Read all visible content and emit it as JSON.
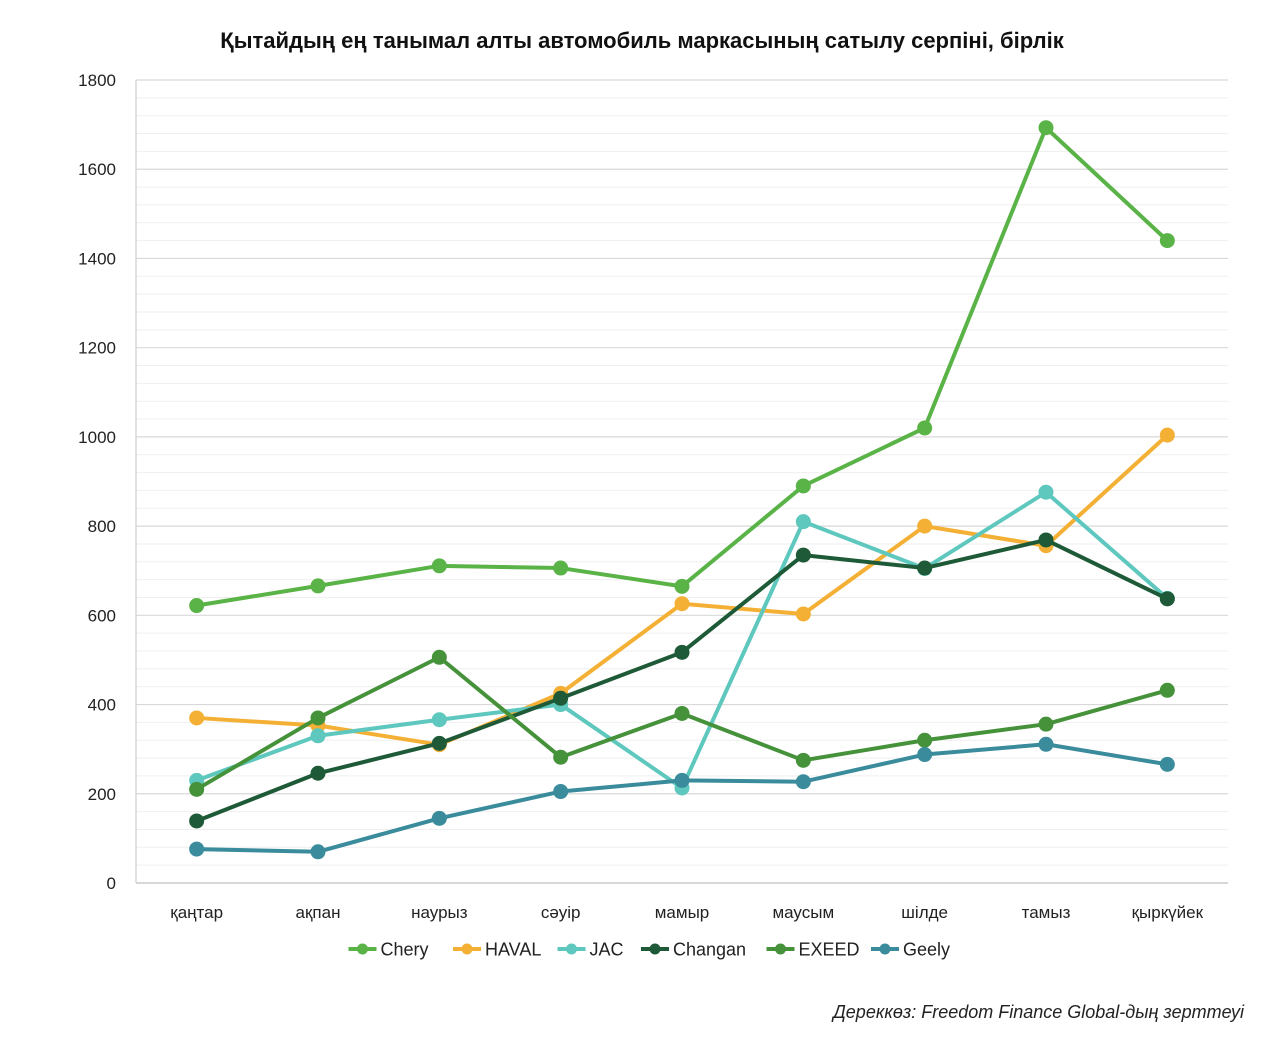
{
  "chart_data": {
    "type": "line",
    "title": "Қытайдың ең танымал алты автомобиль маркасының сатылу серпіні, бірлік",
    "categories": [
      "қаңтар",
      "ақпан",
      "наурыз",
      "сәуір",
      "мамыр",
      "маусым",
      "шілде",
      "тамыз",
      "қыркүйек"
    ],
    "ylim": [
      0,
      1800
    ],
    "yticks": [
      0,
      200,
      400,
      600,
      800,
      1000,
      1200,
      1400,
      1600,
      1800
    ],
    "grid": true,
    "legend_position": "bottom",
    "series": [
      {
        "name": "Chery",
        "color": "#5ab347",
        "values": [
          622,
          666,
          711,
          706,
          665,
          890,
          1020,
          1693,
          1440
        ]
      },
      {
        "name": "HAVAL",
        "color": "#f4b035",
        "values": [
          370,
          353,
          310,
          425,
          626,
          603,
          800,
          756,
          1004
        ]
      },
      {
        "name": "JAC",
        "color": "#5ec8be",
        "values": [
          230,
          330,
          366,
          400,
          213,
          810,
          705,
          876,
          638
        ]
      },
      {
        "name": "Changan",
        "color": "#1e5a37",
        "values": [
          139,
          246,
          313,
          414,
          517,
          735,
          706,
          769,
          637
        ]
      },
      {
        "name": "EXEED",
        "color": "#45923a",
        "values": [
          210,
          370,
          506,
          282,
          380,
          275,
          320,
          356,
          432
        ]
      },
      {
        "name": "Geely",
        "color": "#3a8c9c",
        "values": [
          76,
          70,
          145,
          205,
          230,
          227,
          288,
          311,
          266
        ]
      }
    ]
  },
  "source": "Дереккөз: Freedom Finance Global-дың зерттеуі"
}
